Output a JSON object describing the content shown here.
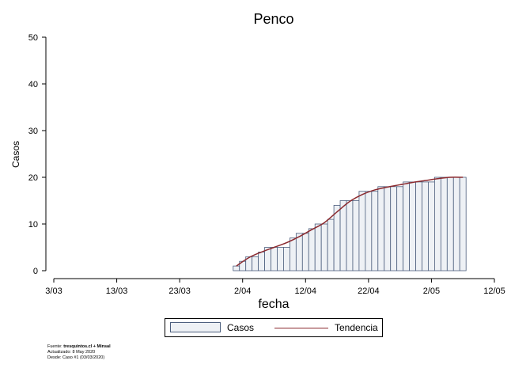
{
  "chart_data": {
    "type": "bar",
    "title": "Penco",
    "xlabel": "fecha",
    "ylabel": "Casos",
    "ylim": [
      0,
      50
    ],
    "yticks": [
      0,
      10,
      20,
      30,
      40,
      50
    ],
    "xlim": [
      "2020-03-03",
      "2020-05-12"
    ],
    "xticks": [
      {
        "date": "2020-03-03",
        "label": "3/03"
      },
      {
        "date": "2020-03-13",
        "label": "13/03"
      },
      {
        "date": "2020-03-23",
        "label": "23/03"
      },
      {
        "date": "2020-04-02",
        "label": "2/04"
      },
      {
        "date": "2020-04-12",
        "label": "12/04"
      },
      {
        "date": "2020-04-22",
        "label": "22/04"
      },
      {
        "date": "2020-05-02",
        "label": "2/05"
      },
      {
        "date": "2020-05-12",
        "label": "12/05"
      }
    ],
    "grid": false,
    "legend_position": "bottom",
    "series": [
      {
        "name": "Casos",
        "type": "bar",
        "color": "#eef1f5",
        "edge_color": "#4d5f7e",
        "x": [
          "2020-04-01",
          "2020-04-02",
          "2020-04-03",
          "2020-04-04",
          "2020-04-05",
          "2020-04-06",
          "2020-04-07",
          "2020-04-08",
          "2020-04-09",
          "2020-04-10",
          "2020-04-11",
          "2020-04-12",
          "2020-04-13",
          "2020-04-14",
          "2020-04-15",
          "2020-04-16",
          "2020-04-17",
          "2020-04-18",
          "2020-04-19",
          "2020-04-20",
          "2020-04-21",
          "2020-04-22",
          "2020-04-23",
          "2020-04-24",
          "2020-04-25",
          "2020-04-26",
          "2020-04-27",
          "2020-04-28",
          "2020-04-29",
          "2020-04-30",
          "2020-05-01",
          "2020-05-02",
          "2020-05-03",
          "2020-05-04",
          "2020-05-05",
          "2020-05-06",
          "2020-05-07"
        ],
        "values": [
          1,
          2,
          3,
          3,
          4,
          5,
          5,
          5,
          5,
          7,
          8,
          8,
          9,
          10,
          10,
          11,
          14,
          15,
          15,
          15,
          17,
          17,
          17,
          18,
          18,
          18,
          18,
          19,
          19,
          19,
          19,
          19,
          20,
          20,
          20,
          20,
          20
        ]
      },
      {
        "name": "Tendencia",
        "type": "line",
        "color": "#8b2a2f",
        "x": [
          "2020-04-01",
          "2020-04-03",
          "2020-04-05",
          "2020-04-07",
          "2020-04-09",
          "2020-04-11",
          "2020-04-13",
          "2020-04-15",
          "2020-04-17",
          "2020-04-19",
          "2020-04-21",
          "2020-04-23",
          "2020-04-25",
          "2020-04-27",
          "2020-04-29",
          "2020-05-01",
          "2020-05-03",
          "2020-05-05",
          "2020-05-07"
        ],
        "values": [
          1.0,
          2.8,
          4.0,
          5.0,
          6.0,
          7.3,
          8.8,
          10.3,
          12.6,
          14.8,
          16.3,
          17.3,
          17.9,
          18.4,
          18.9,
          19.3,
          19.7,
          20.0,
          20.0
        ]
      }
    ]
  },
  "source": {
    "line1_prefix": "Fuente: ",
    "line1_bold": "tresquintos.cl + Minsal",
    "line2": "Actualizado: 8 May 2020",
    "line3": "Desde: Caso #1  (03/03/2020)"
  }
}
